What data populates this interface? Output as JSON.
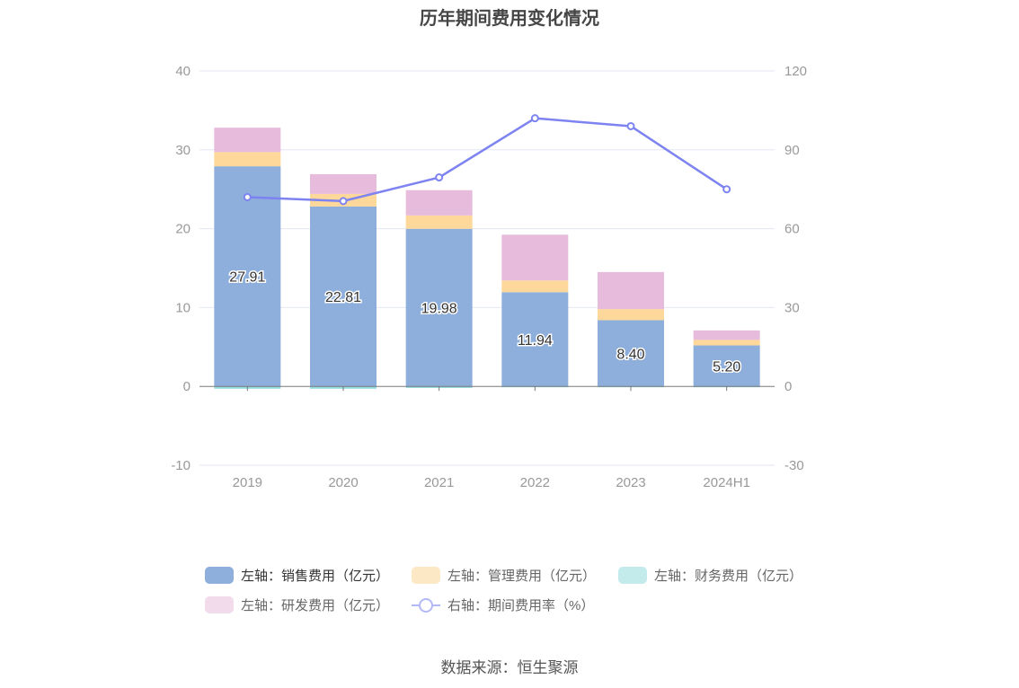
{
  "chart_data": {
    "type": "bar",
    "title": "历年期间费用变化情况",
    "categories": [
      "2019",
      "2020",
      "2021",
      "2022",
      "2023",
      "2024H1"
    ],
    "left_axis": {
      "ylim": [
        -10,
        40
      ],
      "ticks": [
        40,
        30,
        20,
        10,
        0,
        -10
      ]
    },
    "right_axis": {
      "ylim": [
        -30,
        120
      ],
      "ticks": [
        120,
        90,
        60,
        30,
        0,
        -30
      ]
    },
    "grid": true,
    "stacked": true,
    "series": [
      {
        "name": "左轴：销售费用（亿元）",
        "axis": "left",
        "color": "#8eaedb",
        "values": [
          27.91,
          22.81,
          19.98,
          11.94,
          8.4,
          5.2
        ],
        "labels": [
          "27.91",
          "22.81",
          "19.98",
          "11.94",
          "8.40",
          "5.20"
        ]
      },
      {
        "name": "左轴：管理费用（亿元）",
        "axis": "left",
        "color": "#fed89a",
        "values": [
          1.8,
          1.6,
          1.7,
          1.5,
          1.4,
          0.7
        ]
      },
      {
        "name": "左轴：财务费用（亿元）",
        "axis": "left",
        "color": "#93dce0",
        "values": [
          -0.3,
          -0.3,
          -0.2,
          -0.05,
          -0.05,
          -0.05
        ]
      },
      {
        "name": "左轴：研发费用（亿元）",
        "axis": "left",
        "color": "#e7bbdb",
        "values": [
          3.1,
          2.5,
          3.2,
          5.8,
          4.7,
          1.2
        ]
      },
      {
        "name": "右轴：期间费用率（%）",
        "axis": "right",
        "type": "line",
        "color": "#7d83f0",
        "values": [
          72,
          70.5,
          79.5,
          102,
          99,
          75
        ]
      }
    ],
    "legend_placement": "bottom"
  },
  "source": "数据来源：恒生聚源"
}
